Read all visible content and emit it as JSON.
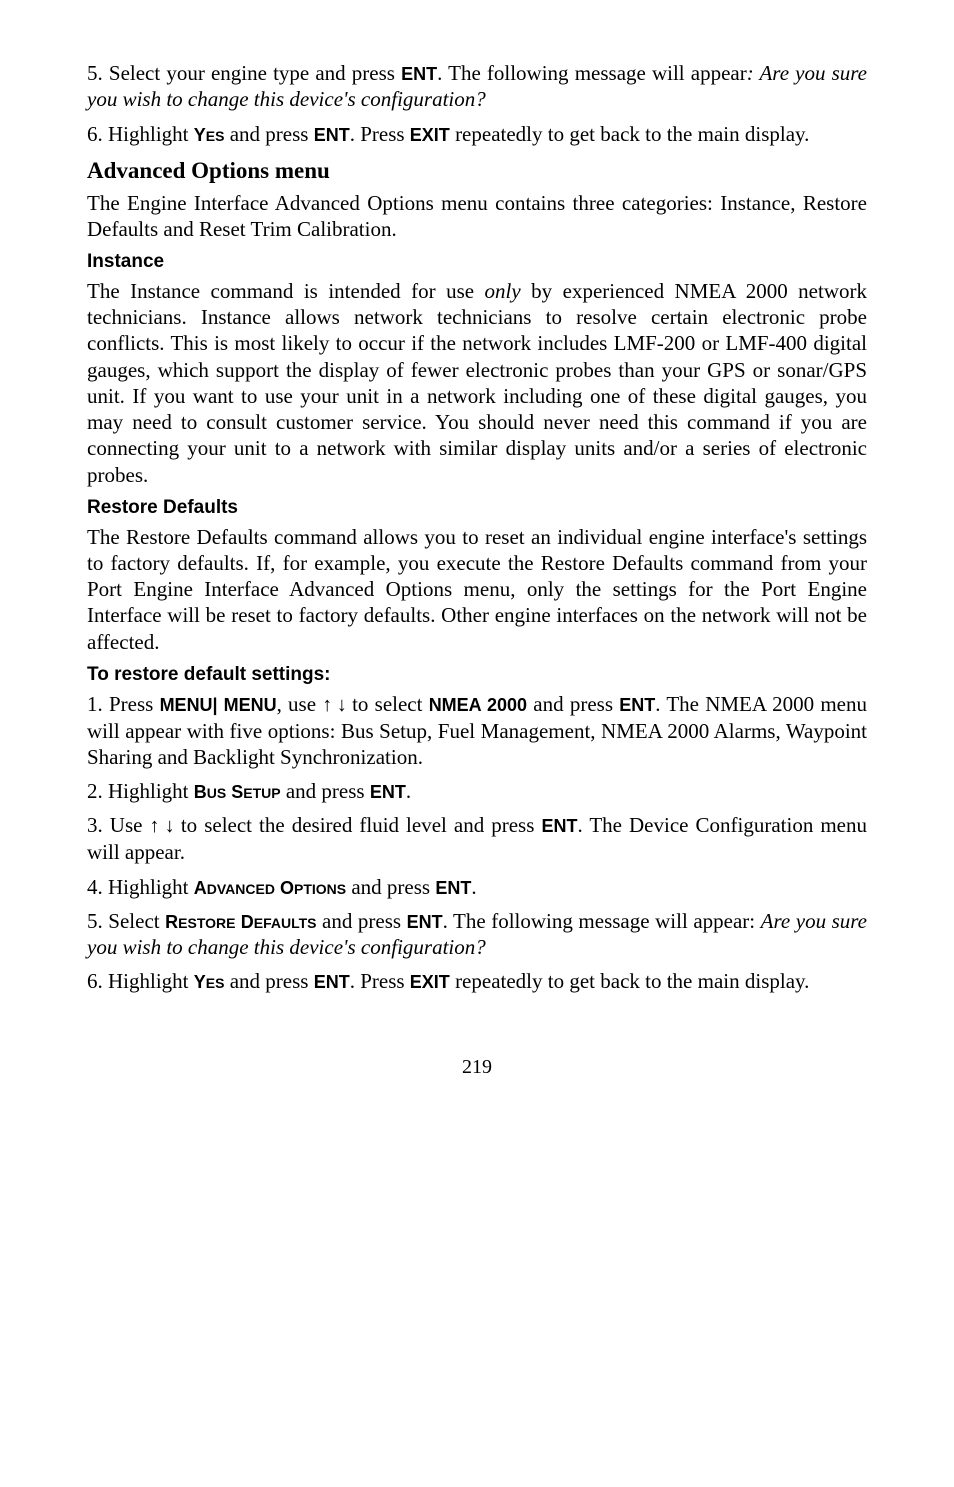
{
  "step5a": {
    "pre": "5. Select your engine type and press ",
    "key": "ENT",
    "mid": ". The following message will appear",
    "italic": ": Are you sure you wish to change this device's configuration?"
  },
  "step6a": {
    "pre": "6. Highlight ",
    "yes_big": "Y",
    "yes_small": "ES",
    "mid1": " and press ",
    "ent": "ENT",
    "mid2": ". Press ",
    "exit": "EXIT",
    "post": " repeatedly to get back to the main display."
  },
  "advOptions": {
    "heading": "Advanced Options menu",
    "body": "The Engine Interface Advanced Options menu contains three categories: Instance, Restore Defaults and Reset Trim Calibration."
  },
  "instance": {
    "heading": "Instance",
    "pre": "The Instance command is intended for use ",
    "only": "only",
    "post": " by experienced NMEA 2000 network technicians. Instance allows network technicians to resolve certain electronic probe conflicts. This is most likely to occur if the network includes LMF-200 or LMF-400 digital gauges, which support the display of fewer electronic probes than your GPS or sonar/GPS unit. If you want to use your unit in a network including one of these digital gauges, you may need to consult customer service. You should never need this command if you are connecting your unit to a network with similar display units and/or a series of electronic probes."
  },
  "restore": {
    "heading": "Restore Defaults",
    "body": "The Restore Defaults command allows you to reset an individual engine interface's settings to factory defaults. If, for example, you execute the Restore Defaults command from your Port Engine Interface Advanced Options menu, only the settings for the Port Engine Interface will be reset to factory defaults. Other engine interfaces on the network will not be affected."
  },
  "toRestore": {
    "heading": "To restore default settings:"
  },
  "step1": {
    "pre": "1. Press ",
    "menu": "MENU| MENU",
    "mid1": ", use ",
    "arrows": "↑ ↓",
    "mid2": "  to select ",
    "nmea": "NMEA 2000",
    "mid3": " and press ",
    "ent": "ENT",
    "post": ". The NMEA 2000 menu will appear with five options: Bus Setup, Fuel Management, NMEA 2000 Alarms, Waypoint Sharing and Backlight Synchronization."
  },
  "step2": {
    "pre": "2. Highlight ",
    "b_big": "B",
    "b_small": "US",
    "s_big": " S",
    "s_small": "ETUP",
    "mid": " and press ",
    "ent": "ENT",
    "post": "."
  },
  "step3": {
    "pre": "3. Use ",
    "arrows": "↑ ↓",
    "mid": " to select the desired fluid level and press ",
    "ent": "ENT",
    "post": ". The Device Configuration menu will appear."
  },
  "step4": {
    "pre": "4. Highlight ",
    "a_big": "A",
    "a_small": "DVANCED",
    "o_big": " O",
    "o_small": "PTIONS",
    "mid": " and press ",
    "ent": "ENT",
    "post": "."
  },
  "step5b": {
    "pre": "5. Select ",
    "r_big": "R",
    "r_small": "ESTORE",
    "d_big": " D",
    "d_small": "EFAULTS",
    "mid1": " and press ",
    "ent": "ENT",
    "mid2": ". The following message will appear: ",
    "italic": "Are you sure you wish to change this device's configuration?"
  },
  "step6b": {
    "pre": "6. Highlight ",
    "yes_big": "Y",
    "yes_small": "ES",
    "mid1": " and press ",
    "ent": "ENT",
    "mid2": ". Press ",
    "exit": "EXIT",
    "post": " repeatedly to get back to the main display."
  },
  "pageNumber": "219"
}
